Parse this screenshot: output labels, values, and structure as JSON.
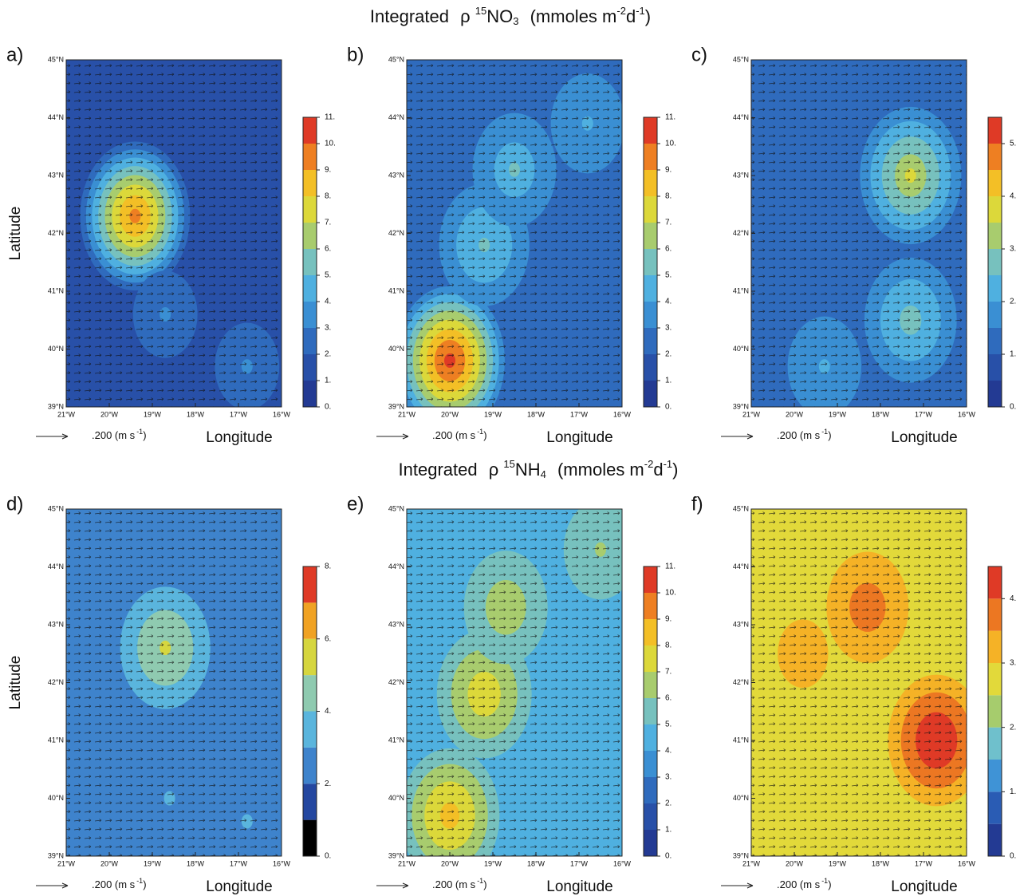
{
  "titles": [
    {
      "text": "Integrated",
      "rho": "ρ",
      "iso": "15",
      "species": "NO",
      "sub": "3",
      "unit": "(mmoles m",
      "exp1": "-2",
      "d": "d",
      "exp2": "-1",
      "close": ")"
    },
    {
      "text": "Integrated",
      "rho": "ρ",
      "iso": "15",
      "species": "NH",
      "sub": "4",
      "unit": "(mmoles m",
      "exp1": "-2",
      "d": "d",
      "exp2": "-1",
      "close": ")"
    }
  ],
  "chart_data": [
    {
      "type": "contour",
      "label": "a)",
      "ylabel": "Latitude",
      "xlabel": "Longitude",
      "vector_label": ".200 (m s",
      "vector_exp": "-1",
      "vector_close": ")",
      "xlim": [
        -21,
        -16
      ],
      "ylim": [
        39,
        45
      ],
      "xticks": [
        {
          "value": -21,
          "label": "21°W"
        },
        {
          "value": -20,
          "label": "20°W"
        },
        {
          "value": -19,
          "label": "19°W"
        },
        {
          "value": -18,
          "label": "18°W"
        },
        {
          "value": -17,
          "label": "17°W"
        },
        {
          "value": -16,
          "label": "16°W"
        }
      ],
      "yticks": [
        {
          "value": 45,
          "label": "45°N"
        },
        {
          "value": 44,
          "label": "44°N"
        },
        {
          "value": 43,
          "label": "43°N"
        },
        {
          "value": 42,
          "label": "42°N"
        },
        {
          "value": 41,
          "label": "41°N"
        },
        {
          "value": 40,
          "label": "40°N"
        },
        {
          "value": 39,
          "label": "39°N"
        }
      ],
      "zlim": [
        0,
        11
      ],
      "zticks": [
        {
          "value": 0,
          "label": "0."
        },
        {
          "value": 1,
          "label": "1."
        },
        {
          "value": 2,
          "label": "2."
        },
        {
          "value": 3,
          "label": "3."
        },
        {
          "value": 4,
          "label": "4."
        },
        {
          "value": 5,
          "label": "5."
        },
        {
          "value": 6,
          "label": "6."
        },
        {
          "value": 7,
          "label": "7."
        },
        {
          "value": 8,
          "label": "8."
        },
        {
          "value": 9,
          "label": "9."
        },
        {
          "value": 10,
          "label": "10."
        },
        {
          "value": 11,
          "label": "11."
        }
      ],
      "colors": [
        "#233a93",
        "#2850a8",
        "#2f6bbd",
        "#3a8fd3",
        "#4fb0e0",
        "#77c1be",
        "#a8cc6e",
        "#dcd83a",
        "#f3bf26",
        "#ee7f22",
        "#df3a26"
      ],
      "background": 1.5,
      "x": [
        -19.4,
        -18.7,
        -16.8
      ],
      "y": [
        42.3,
        40.6,
        39.7
      ],
      "values": [
        9.5,
        3.2,
        3.2
      ]
    },
    {
      "type": "contour",
      "label": "b)",
      "xlabel": "Longitude",
      "vector_label": ".200 (m s",
      "vector_exp": "-1",
      "vector_close": ")",
      "xlim": [
        -21,
        -16
      ],
      "ylim": [
        39,
        45
      ],
      "xticks": [
        {
          "value": -21,
          "label": "21°W"
        },
        {
          "value": -20,
          "label": "20°W"
        },
        {
          "value": -19,
          "label": "19°W"
        },
        {
          "value": -18,
          "label": "18°W"
        },
        {
          "value": -17,
          "label": "17°W"
        },
        {
          "value": -16,
          "label": "16°W"
        }
      ],
      "yticks": [
        {
          "value": 45,
          "label": "45°N"
        },
        {
          "value": 44,
          "label": "44°N"
        },
        {
          "value": 43,
          "label": "43°N"
        },
        {
          "value": 42,
          "label": "42°N"
        },
        {
          "value": 41,
          "label": "41°N"
        },
        {
          "value": 40,
          "label": "40°N"
        },
        {
          "value": 39,
          "label": "39°N"
        }
      ],
      "zlim": [
        0,
        11
      ],
      "zticks": [
        {
          "value": 0,
          "label": "0."
        },
        {
          "value": 1,
          "label": "1."
        },
        {
          "value": 2,
          "label": "2."
        },
        {
          "value": 3,
          "label": "3."
        },
        {
          "value": 4,
          "label": "4."
        },
        {
          "value": 5,
          "label": "5."
        },
        {
          "value": 6,
          "label": "6."
        },
        {
          "value": 7,
          "label": "7."
        },
        {
          "value": 8,
          "label": "8."
        },
        {
          "value": 9,
          "label": "9."
        },
        {
          "value": 10,
          "label": "10."
        },
        {
          "value": 11,
          "label": "11."
        }
      ],
      "colors": [
        "#233a93",
        "#2850a8",
        "#2f6bbd",
        "#3a8fd3",
        "#4fb0e0",
        "#77c1be",
        "#a8cc6e",
        "#dcd83a",
        "#f3bf26",
        "#ee7f22",
        "#df3a26"
      ],
      "background": 2.5,
      "x": [
        -20,
        -19.2,
        -18.5,
        -16.8
      ],
      "y": [
        39.8,
        41.8,
        43.1,
        43.9
      ],
      "values": [
        10.5,
        5.5,
        5,
        4.5
      ]
    },
    {
      "type": "contour",
      "label": "c)",
      "xlabel": "Longitude",
      "vector_label": ".200 (m s",
      "vector_exp": "-1",
      "vector_close": ")",
      "xlim": [
        -21,
        -16
      ],
      "ylim": [
        39,
        45
      ],
      "xticks": [
        {
          "value": -21,
          "label": "21°W"
        },
        {
          "value": -20,
          "label": "20°W"
        },
        {
          "value": -19,
          "label": "19°W"
        },
        {
          "value": -18,
          "label": "18°W"
        },
        {
          "value": -17,
          "label": "17°W"
        },
        {
          "value": -16,
          "label": "16°W"
        }
      ],
      "yticks": [
        {
          "value": 45,
          "label": "45°N"
        },
        {
          "value": 44,
          "label": "44°N"
        },
        {
          "value": 43,
          "label": "43°N"
        },
        {
          "value": 42,
          "label": "42°N"
        },
        {
          "value": 41,
          "label": "41°N"
        },
        {
          "value": 40,
          "label": "40°N"
        },
        {
          "value": 39,
          "label": "39°N"
        }
      ],
      "zlim": [
        0,
        5.5
      ],
      "zticks": [
        {
          "value": 0,
          "label": "0."
        },
        {
          "value": 1,
          "label": "1."
        },
        {
          "value": 2,
          "label": "2."
        },
        {
          "value": 3,
          "label": "3."
        },
        {
          "value": 4,
          "label": "4."
        },
        {
          "value": 5,
          "label": "5."
        }
      ],
      "colors": [
        "#233a93",
        "#2850a8",
        "#2f6bbd",
        "#3a8fd3",
        "#4fb0e0",
        "#77c1be",
        "#a8cc6e",
        "#dcd83a",
        "#f3bf26",
        "#ee7f22",
        "#df3a26"
      ],
      "background": 1.2,
      "x": [
        -17.3,
        -17.3,
        -19.3
      ],
      "y": [
        43,
        40.5,
        39.7
      ],
      "values": [
        3.5,
        2.8,
        2.2
      ]
    },
    {
      "type": "contour",
      "label": "d)",
      "ylabel": "Latitude",
      "xlabel": "Longitude",
      "vector_label": ".200 (m s",
      "vector_exp": "-1",
      "vector_close": ")",
      "xlim": [
        -21,
        -16
      ],
      "ylim": [
        39,
        45
      ],
      "xticks": [
        {
          "value": -21,
          "label": "21°W"
        },
        {
          "value": -20,
          "label": "20°W"
        },
        {
          "value": -19,
          "label": "19°W"
        },
        {
          "value": -18,
          "label": "18°W"
        },
        {
          "value": -17,
          "label": "17°W"
        },
        {
          "value": -16,
          "label": "16°W"
        }
      ],
      "yticks": [
        {
          "value": 45,
          "label": "45°N"
        },
        {
          "value": 44,
          "label": "44°N"
        },
        {
          "value": 43,
          "label": "43°N"
        },
        {
          "value": 42,
          "label": "42°N"
        },
        {
          "value": 41,
          "label": "41°N"
        },
        {
          "value": 40,
          "label": "40°N"
        },
        {
          "value": 39,
          "label": "39°N"
        }
      ],
      "zlim": [
        0,
        8
      ],
      "zticks": [
        {
          "value": 0,
          "label": "0."
        },
        {
          "value": 2,
          "label": "2."
        },
        {
          "value": 4,
          "label": "4."
        },
        {
          "value": 6,
          "label": "6."
        },
        {
          "value": 8,
          "label": "8."
        }
      ],
      "colors": [
        "#000000",
        "#2447a0",
        "#3e83cc",
        "#5ab5dd",
        "#8fcab0",
        "#d6d63f",
        "#f0a223",
        "#df3a26"
      ],
      "background": 2.5,
      "x": [
        -18.7,
        -16.8,
        -18.6
      ],
      "y": [
        42.6,
        39.6,
        40.0
      ],
      "values": [
        5.5,
        3.5,
        3.2
      ]
    },
    {
      "type": "contour",
      "label": "e)",
      "xlabel": "Longitude",
      "vector_label": ".200 (m s",
      "vector_exp": "-1",
      "vector_close": ")",
      "xlim": [
        -21,
        -16
      ],
      "ylim": [
        39,
        45
      ],
      "xticks": [
        {
          "value": -21,
          "label": "21°W"
        },
        {
          "value": -20,
          "label": "20°W"
        },
        {
          "value": -19,
          "label": "19°W"
        },
        {
          "value": -18,
          "label": "18°W"
        },
        {
          "value": -17,
          "label": "17°W"
        },
        {
          "value": -16,
          "label": "16°W"
        }
      ],
      "yticks": [
        {
          "value": 45,
          "label": "45°N"
        },
        {
          "value": 44,
          "label": "44°N"
        },
        {
          "value": 43,
          "label": "43°N"
        },
        {
          "value": 42,
          "label": "42°N"
        },
        {
          "value": 41,
          "label": "41°N"
        },
        {
          "value": 40,
          "label": "40°N"
        },
        {
          "value": 39,
          "label": "39°N"
        }
      ],
      "zlim": [
        0,
        11
      ],
      "zticks": [
        {
          "value": 0,
          "label": "0."
        },
        {
          "value": 1,
          "label": "1."
        },
        {
          "value": 2,
          "label": "2."
        },
        {
          "value": 3,
          "label": "3."
        },
        {
          "value": 4,
          "label": "4."
        },
        {
          "value": 5,
          "label": "5."
        },
        {
          "value": 6,
          "label": "6."
        },
        {
          "value": 7,
          "label": "7."
        },
        {
          "value": 8,
          "label": "8."
        },
        {
          "value": 9,
          "label": "9."
        },
        {
          "value": 10,
          "label": "10."
        },
        {
          "value": 11,
          "label": "11."
        }
      ],
      "colors": [
        "#233a93",
        "#2850a8",
        "#2f6bbd",
        "#3a8fd3",
        "#4fb0e0",
        "#77c1be",
        "#a8cc6e",
        "#dcd83a",
        "#f3bf26",
        "#ee7f22",
        "#df3a26"
      ],
      "background": 4,
      "x": [
        -19.2,
        -20,
        -18.7,
        -16.5
      ],
      "y": [
        41.8,
        39.7,
        43.3,
        44.3
      ],
      "values": [
        7.5,
        8.2,
        6.5,
        6
      ]
    },
    {
      "type": "contour",
      "label": "f)",
      "xlabel": "Longitude",
      "vector_label": ".200 (m s",
      "vector_exp": "-1",
      "vector_close": ")",
      "xlim": [
        -21,
        -16
      ],
      "ylim": [
        39,
        45
      ],
      "xticks": [
        {
          "value": -21,
          "label": "21°W"
        },
        {
          "value": -20,
          "label": "20°W"
        },
        {
          "value": -19,
          "label": "19°W"
        },
        {
          "value": -18,
          "label": "18°W"
        },
        {
          "value": -17,
          "label": "17°W"
        },
        {
          "value": -16,
          "label": "16°W"
        }
      ],
      "yticks": [
        {
          "value": 45,
          "label": "45°N"
        },
        {
          "value": 44,
          "label": "44°N"
        },
        {
          "value": 43,
          "label": "43°N"
        },
        {
          "value": 42,
          "label": "42°N"
        },
        {
          "value": 41,
          "label": "41°N"
        },
        {
          "value": 40,
          "label": "40°N"
        },
        {
          "value": 39,
          "label": "39°N"
        }
      ],
      "zlim": [
        0,
        4.5
      ],
      "zticks": [
        {
          "value": 0,
          "label": "0."
        },
        {
          "value": 1,
          "label": "1."
        },
        {
          "value": 2,
          "label": "2."
        },
        {
          "value": 3,
          "label": "3."
        },
        {
          "value": 4,
          "label": "4."
        }
      ],
      "colors": [
        "#233a93",
        "#2a5cb4",
        "#3f93d6",
        "#6fc0cc",
        "#a6cc6d",
        "#e2d93a",
        "#f5b226",
        "#ec7722",
        "#df3a26"
      ],
      "background": 2.5,
      "x": [
        -16.7,
        -18.3,
        -19.8
      ],
      "y": [
        41,
        43.3,
        42.5
      ],
      "values": [
        4.4,
        3.7,
        3.2
      ]
    }
  ]
}
